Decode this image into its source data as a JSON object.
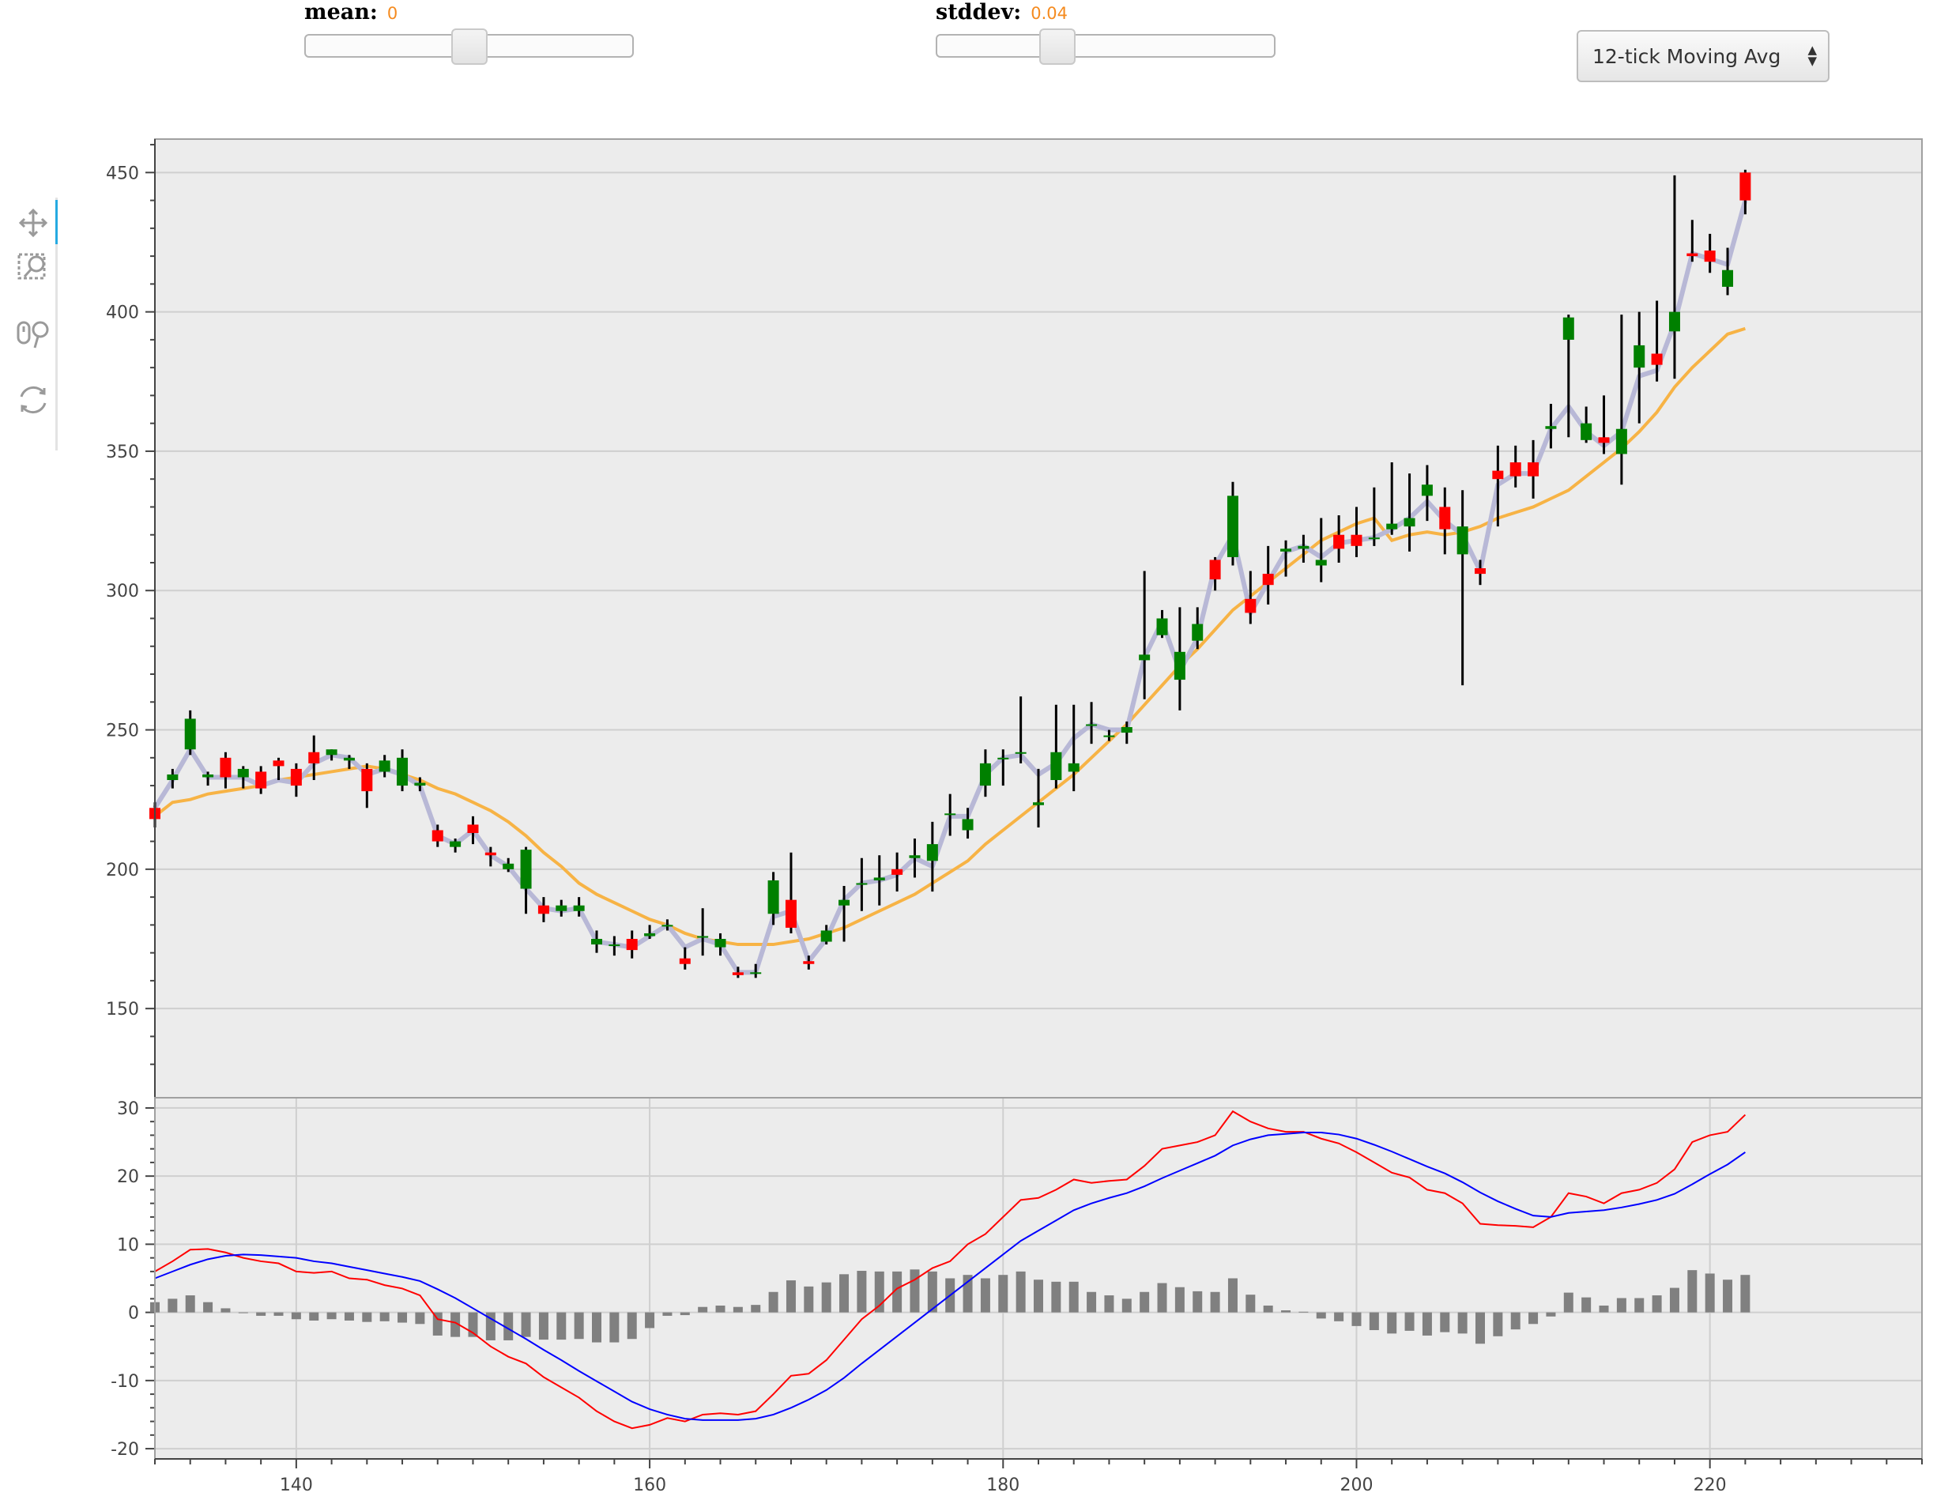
{
  "controls": {
    "mean": {
      "label": "mean:",
      "value": "0",
      "fraction": 0.5
    },
    "stddev": {
      "label": "stddev:",
      "value": "0.04",
      "fraction": 0.34
    },
    "select": {
      "value": "12-tick Moving Avg"
    }
  },
  "toolbar": {
    "tools": [
      "pan-icon",
      "box-zoom-icon",
      "wheel-zoom-icon",
      "reset-icon"
    ]
  },
  "chart_data": [
    {
      "type": "candlestick",
      "ylim": [
        118,
        462
      ],
      "xlim": [
        132,
        232
      ],
      "yticks": [
        "150",
        "200",
        "250",
        "300",
        "350",
        "400",
        "450"
      ],
      "grid": true,
      "colors": {
        "up": "#008000",
        "down": "#ff0000",
        "wick": "#000000",
        "line": "#b8b8d6",
        "ma": "#f7b345",
        "background": "#ececec"
      },
      "x": [
        132,
        133,
        134,
        135,
        136,
        137,
        138,
        139,
        140,
        141,
        142,
        143,
        144,
        145,
        146,
        147,
        148,
        149,
        150,
        151,
        152,
        153,
        154,
        155,
        156,
        157,
        158,
        159,
        160,
        161,
        162,
        163,
        164,
        165,
        166,
        167,
        168,
        169,
        170,
        171,
        172,
        173,
        174,
        175,
        176,
        177,
        178,
        179,
        180,
        181,
        182,
        183,
        184,
        185,
        186,
        187,
        188,
        189,
        190,
        191,
        192,
        193,
        194,
        195,
        196,
        197,
        198,
        199,
        200,
        201,
        202,
        203,
        204,
        205,
        206,
        207,
        208,
        209,
        210,
        211,
        212,
        213,
        214,
        215,
        216,
        217,
        218,
        219,
        220,
        221,
        222
      ],
      "open": [
        222,
        232,
        243,
        233,
        240,
        233,
        235,
        239,
        236,
        242,
        241,
        239,
        236,
        235,
        230,
        230,
        214,
        208,
        216,
        206,
        200,
        193,
        187,
        185,
        185,
        173,
        173,
        175,
        176,
        180,
        168,
        176,
        172,
        163,
        163,
        184,
        189,
        167,
        174,
        187,
        195,
        196,
        200,
        204,
        203,
        220,
        214,
        230,
        240,
        242,
        223,
        232,
        235,
        252,
        248,
        249,
        275,
        284,
        268,
        282,
        311,
        312,
        297,
        306,
        314,
        315,
        309,
        320,
        320,
        319,
        322,
        323,
        334,
        330,
        313,
        308,
        343,
        346,
        346,
        358,
        390,
        354,
        355,
        349,
        380,
        385,
        393,
        421,
        422,
        409,
        450
      ],
      "close": [
        218,
        234,
        254,
        234,
        233,
        236,
        229,
        237,
        230,
        238,
        243,
        240,
        228,
        239,
        240,
        231,
        210,
        210,
        213,
        205,
        202,
        207,
        184,
        187,
        187,
        175,
        173,
        171,
        177,
        180,
        166,
        176,
        175,
        162,
        163,
        196,
        179,
        166,
        178,
        189,
        195,
        197,
        198,
        205,
        209,
        220,
        218,
        238,
        240,
        242,
        224,
        242,
        238,
        252,
        248,
        251,
        277,
        290,
        278,
        288,
        304,
        334,
        292,
        302,
        315,
        316,
        311,
        315,
        316,
        319,
        324,
        326,
        338,
        322,
        323,
        306,
        340,
        341,
        341,
        359,
        398,
        360,
        353,
        358,
        388,
        381,
        400,
        420,
        418,
        415,
        440
      ],
      "high": [
        224,
        236,
        257,
        235,
        242,
        237,
        237,
        240,
        238,
        248,
        243,
        241,
        238,
        241,
        243,
        233,
        216,
        211,
        219,
        208,
        204,
        208,
        190,
        189,
        190,
        178,
        176,
        178,
        180,
        182,
        172,
        186,
        177,
        165,
        166,
        199,
        206,
        169,
        180,
        194,
        204,
        205,
        206,
        211,
        217,
        227,
        222,
        243,
        243,
        262,
        236,
        259,
        259,
        260,
        250,
        253,
        307,
        293,
        294,
        294,
        312,
        339,
        307,
        316,
        318,
        320,
        326,
        327,
        330,
        337,
        346,
        342,
        345,
        337,
        336,
        311,
        352,
        352,
        354,
        367,
        399,
        366,
        370,
        399,
        400,
        404,
        449,
        433,
        428,
        423,
        451
      ],
      "low": [
        215,
        229,
        241,
        230,
        229,
        229,
        227,
        232,
        226,
        232,
        239,
        236,
        222,
        233,
        228,
        228,
        208,
        206,
        209,
        201,
        199,
        184,
        181,
        183,
        183,
        170,
        169,
        168,
        175,
        178,
        164,
        169,
        169,
        161,
        161,
        180,
        177,
        164,
        173,
        174,
        185,
        187,
        192,
        197,
        192,
        212,
        211,
        226,
        230,
        238,
        215,
        229,
        228,
        245,
        246,
        245,
        261,
        283,
        257,
        279,
        300,
        309,
        288,
        295,
        305,
        310,
        303,
        310,
        312,
        316,
        320,
        314,
        325,
        313,
        266,
        302,
        323,
        337,
        333,
        351,
        355,
        353,
        349,
        338,
        360,
        375,
        376,
        418,
        414,
        406,
        435
      ],
      "ma": [
        219,
        224,
        225,
        227,
        228,
        229,
        230,
        232,
        233,
        234,
        235,
        236,
        237,
        236,
        234,
        232,
        229,
        227,
        224,
        221,
        217,
        212,
        206,
        201,
        195,
        191,
        188,
        185,
        182,
        180,
        177,
        175,
        174,
        173,
        173,
        173,
        174,
        175,
        177,
        179,
        182,
        185,
        188,
        191,
        195,
        199,
        203,
        209,
        214,
        219,
        224,
        229,
        234,
        240,
        246,
        252,
        259,
        266,
        273,
        279,
        286,
        293,
        298,
        303,
        308,
        313,
        318,
        321,
        324,
        326,
        318,
        320,
        321,
        320,
        321,
        323,
        326,
        328,
        330,
        333,
        336,
        341,
        346,
        351,
        357,
        364,
        373,
        380,
        386,
        392,
        394
      ],
      "close_line": [
        222,
        232,
        243,
        233,
        233,
        233,
        230,
        232,
        231,
        238,
        241,
        240,
        234,
        236,
        234,
        230,
        212,
        209,
        214,
        205,
        201,
        193,
        186,
        185,
        186,
        174,
        173,
        172,
        176,
        180,
        172,
        175,
        173,
        163,
        163,
        183,
        185,
        167,
        175,
        189,
        195,
        196,
        198,
        204,
        201,
        219,
        219,
        234,
        240,
        241,
        234,
        238,
        247,
        252,
        250,
        250,
        276,
        289,
        271,
        283,
        309,
        320,
        292,
        303,
        314,
        316,
        312,
        317,
        318,
        319,
        322,
        326,
        332,
        325,
        320,
        307,
        338,
        342,
        342,
        358,
        366,
        357,
        352,
        357,
        377,
        379,
        396,
        421,
        419,
        417,
        440
      ]
    },
    {
      "type": "macd",
      "ylim": [
        -21.5,
        31.5
      ],
      "yticks": [
        "30",
        "20",
        "10",
        "0",
        "-10",
        "-20"
      ],
      "xticks": [
        "140",
        "160",
        "180",
        "200",
        "220"
      ],
      "xtick_values": [
        140,
        160,
        180,
        200,
        220
      ],
      "grid": true,
      "colors": {
        "macd": "#ff0000",
        "signal": "#0000ff",
        "hist": "#808080"
      },
      "x": [
        132,
        133,
        134,
        135,
        136,
        137,
        138,
        139,
        140,
        141,
        142,
        143,
        144,
        145,
        146,
        147,
        148,
        149,
        150,
        151,
        152,
        153,
        154,
        155,
        156,
        157,
        158,
        159,
        160,
        161,
        162,
        163,
        164,
        165,
        166,
        167,
        168,
        169,
        170,
        171,
        172,
        173,
        174,
        175,
        176,
        177,
        178,
        179,
        180,
        181,
        182,
        183,
        184,
        185,
        186,
        187,
        188,
        189,
        190,
        191,
        192,
        193,
        194,
        195,
        196,
        197,
        198,
        199,
        200,
        201,
        202,
        203,
        204,
        205,
        206,
        207,
        208,
        209,
        210,
        211,
        212,
        213,
        214,
        215,
        216,
        217,
        218,
        219,
        220,
        221,
        222
      ],
      "macd": [
        6,
        7.5,
        9.2,
        9.3,
        8.8,
        8,
        7.5,
        7.2,
        6,
        5.8,
        6,
        5,
        4.8,
        4,
        3.5,
        2.5,
        -1,
        -1.5,
        -3,
        -5,
        -6.5,
        -7.5,
        -9.5,
        -11,
        -12.5,
        -14.5,
        -16,
        -17,
        -16.5,
        -15.5,
        -16,
        -15,
        -14.8,
        -15,
        -14.5,
        -12,
        -9.3,
        -9,
        -7,
        -4,
        -1,
        1,
        3.5,
        4.8,
        6.5,
        7.5,
        10,
        11.5,
        14,
        16.5,
        16.8,
        18,
        19.5,
        19,
        19.3,
        19.5,
        21.5,
        24,
        24.5,
        25,
        26,
        29.5,
        28,
        27,
        26.5,
        26.5,
        25.5,
        24.8,
        23.5,
        22,
        20.5,
        19.8,
        18,
        17.5,
        16,
        13,
        12.8,
        12.7,
        12.5,
        14,
        17.5,
        17,
        16,
        17.5,
        18,
        19,
        21,
        25,
        26,
        26.5,
        29
      ],
      "signal": [
        5,
        6,
        7,
        7.8,
        8.3,
        8.5,
        8.4,
        8.2,
        8,
        7.5,
        7.2,
        6.7,
        6.2,
        5.7,
        5.2,
        4.6,
        3.4,
        2.1,
        0.6,
        -0.9,
        -2.4,
        -3.9,
        -5.5,
        -7,
        -8.6,
        -10.1,
        -11.6,
        -13.1,
        -14.2,
        -15,
        -15.6,
        -15.8,
        -15.8,
        -15.8,
        -15.6,
        -15,
        -14,
        -12.8,
        -11.4,
        -9.6,
        -7.5,
        -5.5,
        -3.5,
        -1.5,
        0.5,
        2.5,
        4.5,
        6.5,
        8.5,
        10.5,
        12,
        13.5,
        15,
        16,
        16.8,
        17.5,
        18.5,
        19.7,
        20.8,
        21.9,
        23,
        24.5,
        25.4,
        26,
        26.2,
        26.4,
        26.4,
        26.1,
        25.5,
        24.6,
        23.6,
        22.5,
        21.4,
        20.4,
        19.1,
        17.6,
        16.3,
        15.2,
        14.2,
        14,
        14.6,
        14.8,
        15,
        15.4,
        15.9,
        16.5,
        17.4,
        18.8,
        20.3,
        21.7,
        23.5
      ],
      "hist": [
        1.5,
        2,
        2.5,
        1.5,
        0.6,
        0,
        -0.5,
        -0.5,
        -1,
        -1.2,
        -1,
        -1.2,
        -1.4,
        -1.3,
        -1.5,
        -1.7,
        -3.4,
        -3.6,
        -3.6,
        -4.1,
        -4.1,
        -3.6,
        -4,
        -4,
        -3.9,
        -4.4,
        -4.4,
        -3.9,
        -2.3,
        -0.5,
        -0.4,
        0.8,
        1,
        0.8,
        1.1,
        3,
        4.7,
        3.8,
        4.4,
        5.6,
        6.1,
        6,
        6,
        6.3,
        6,
        5,
        5.5,
        5,
        5.5,
        6,
        4.8,
        4.5,
        4.5,
        3,
        2.5,
        2,
        3,
        4.3,
        3.7,
        3.1,
        3,
        5,
        2.6,
        1,
        0.3,
        0.1,
        -0.9,
        -1.3,
        -2,
        -2.6,
        -3.1,
        -2.7,
        -3.4,
        -2.9,
        -3.1,
        -4.6,
        -3.5,
        -2.5,
        -1.7,
        -0.6,
        2.9,
        2.2,
        1,
        2.1,
        2.1,
        2.5,
        3.6,
        6.2,
        5.7,
        4.8,
        5.5
      ]
    }
  ]
}
